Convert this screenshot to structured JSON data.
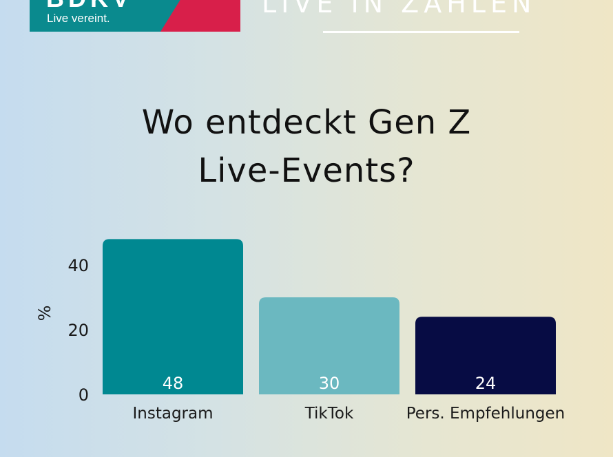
{
  "logo": {
    "wordmark": "BDKV",
    "tagline": "Live vereint.",
    "colors": {
      "teal": "#0a8a8e",
      "red": "#d81f4a"
    }
  },
  "header": {
    "title": "LIVE IN ZAHLEN"
  },
  "chart_data": {
    "type": "bar",
    "title_lines": [
      "Wo entdeckt Gen Z",
      "Live-Events?"
    ],
    "ylabel": "%",
    "xlabel": "",
    "ylim": [
      0,
      50
    ],
    "yticks": [
      0,
      20,
      40
    ],
    "grid": false,
    "categories": [
      "Instagram",
      "TikTok",
      "Pers. Empfehlungen"
    ],
    "values": [
      48,
      30,
      24
    ],
    "colors": [
      "#008891",
      "#6bb8c0",
      "#070c44"
    ],
    "value_labels": [
      "48",
      "30",
      "24"
    ]
  }
}
